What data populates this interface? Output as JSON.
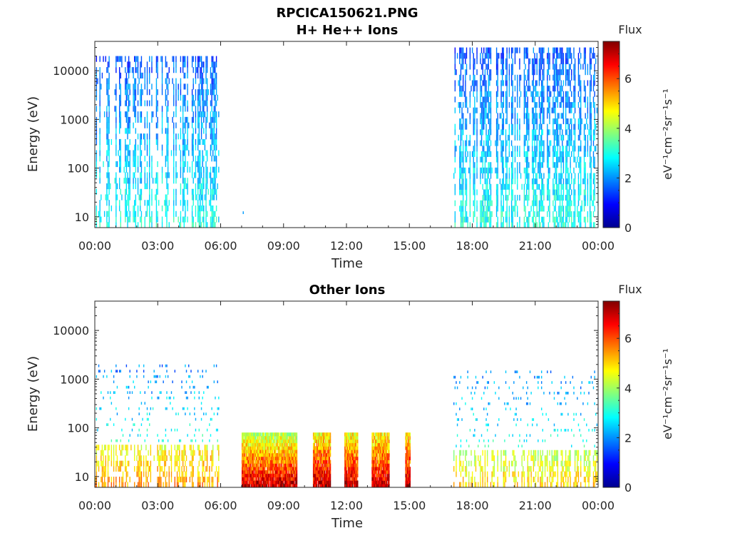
{
  "figure": {
    "title": "RPCICA150621.PNG"
  },
  "colormap": {
    "name": "jet",
    "stops": [
      "#00008f",
      "#0000ff",
      "#0080ff",
      "#00ffff",
      "#80ff80",
      "#ffff00",
      "#ff8000",
      "#ff0000",
      "#800000"
    ]
  },
  "chart_data": [
    {
      "type": "heatmap",
      "title": "H+ He++ Ions",
      "xlabel": "Time",
      "ylabel": "Energy (eV)",
      "x_ticks": [
        "00:00",
        "03:00",
        "06:00",
        "09:00",
        "12:00",
        "15:00",
        "18:00",
        "21:00",
        "00:00"
      ],
      "x_range_hours": [
        0,
        24
      ],
      "y_scale": "log",
      "y_ticks": [
        "10",
        "100",
        "1000",
        "10000"
      ],
      "y_range_eV": [
        6,
        40000
      ],
      "colorbar": {
        "label": "Flux",
        "unit_label": "eV⁻¹cm⁻²sr⁻¹s⁻¹",
        "ticks": [
          "0",
          "2",
          "4",
          "6"
        ],
        "range": [
          0,
          7.5
        ]
      },
      "data_blocks": [
        {
          "t_start_h": 0.0,
          "t_end_h": 5.9,
          "e_min_eV": 6,
          "e_max_eV": 20000,
          "flux_low_energy": 3,
          "flux_high_energy": 1.5,
          "pattern": "sparse vertical sweeps"
        },
        {
          "t_start_h": 7.0,
          "t_end_h": 7.1,
          "e_min_eV": 10,
          "e_max_eV": 80,
          "flux_low_energy": 2.5,
          "flux_high_energy": 2.5,
          "pattern": "isolated faint points"
        },
        {
          "t_start_h": 17.1,
          "t_end_h": 24.0,
          "e_min_eV": 6,
          "e_max_eV": 30000,
          "flux_low_energy": 3,
          "flux_high_energy": 1.5,
          "pattern": "sparse vertical sweeps"
        }
      ]
    },
    {
      "type": "heatmap",
      "title": "Other Ions",
      "xlabel": "Time",
      "ylabel": "Energy (eV)",
      "x_ticks": [
        "00:00",
        "03:00",
        "06:00",
        "09:00",
        "12:00",
        "15:00",
        "18:00",
        "21:00",
        "00:00"
      ],
      "x_range_hours": [
        0,
        24
      ],
      "y_scale": "log",
      "y_ticks": [
        "10",
        "100",
        "1000",
        "10000"
      ],
      "y_range_eV": [
        6,
        40000
      ],
      "colorbar": {
        "label": "Flux",
        "unit_label": "eV⁻¹cm⁻²sr⁻¹s⁻¹",
        "ticks": [
          "0",
          "2",
          "4",
          "6"
        ],
        "range": [
          0,
          7.5
        ]
      },
      "data_blocks": [
        {
          "t_start_h": 0.0,
          "t_end_h": 5.9,
          "e_min_eV": 6,
          "e_max_eV": 45,
          "flux_low_energy": 5.5,
          "flux_high_energy": 4.5,
          "pattern": "sparse vertical sweeps"
        },
        {
          "t_start_h": 0.0,
          "t_end_h": 5.9,
          "e_min_eV": 45,
          "e_max_eV": 2000,
          "flux_low_energy": 3,
          "flux_high_energy": 1.8,
          "pattern": "sparse scattered points"
        },
        {
          "t_start_h": 7.0,
          "t_end_h": 9.6,
          "e_min_eV": 6,
          "e_max_eV": 80,
          "flux_low_energy": 7,
          "flux_high_energy": 4,
          "pattern": "dense block"
        },
        {
          "t_start_h": 10.4,
          "t_end_h": 11.2,
          "e_min_eV": 6,
          "e_max_eV": 80,
          "flux_low_energy": 7,
          "flux_high_energy": 4.5,
          "pattern": "dense block"
        },
        {
          "t_start_h": 11.9,
          "t_end_h": 12.5,
          "e_min_eV": 6,
          "e_max_eV": 80,
          "flux_low_energy": 7,
          "flux_high_energy": 4.5,
          "pattern": "dense block"
        },
        {
          "t_start_h": 13.2,
          "t_end_h": 14.0,
          "e_min_eV": 6,
          "e_max_eV": 80,
          "flux_low_energy": 7,
          "flux_high_energy": 4.5,
          "pattern": "dense block"
        },
        {
          "t_start_h": 14.8,
          "t_end_h": 15.0,
          "e_min_eV": 6,
          "e_max_eV": 80,
          "flux_low_energy": 7,
          "flux_high_energy": 4.5,
          "pattern": "dense block"
        },
        {
          "t_start_h": 17.1,
          "t_end_h": 24.0,
          "e_min_eV": 6,
          "e_max_eV": 35,
          "flux_low_energy": 5,
          "flux_high_energy": 4,
          "pattern": "sparse vertical sweeps"
        },
        {
          "t_start_h": 17.1,
          "t_end_h": 24.0,
          "e_min_eV": 35,
          "e_max_eV": 1500,
          "flux_low_energy": 3,
          "flux_high_energy": 1.8,
          "pattern": "sparse scattered points"
        }
      ]
    }
  ]
}
